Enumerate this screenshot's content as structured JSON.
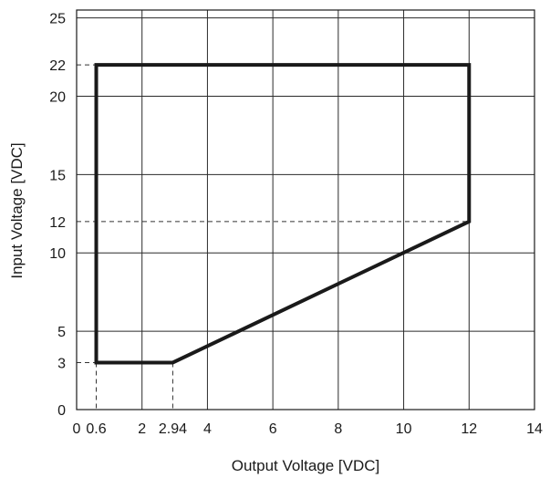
{
  "chart_data": {
    "type": "line",
    "title": "",
    "xlabel": "Output Voltage [VDC]",
    "ylabel": "Input Voltage [VDC]",
    "xlim": [
      0,
      14
    ],
    "ylim": [
      0,
      25.5
    ],
    "grid": true,
    "x_ticks": [
      {
        "value": 0,
        "label": "0"
      },
      {
        "value": 0.6,
        "label": "0.6"
      },
      {
        "value": 2,
        "label": "2"
      },
      {
        "value": 2.94,
        "label": "2.94"
      },
      {
        "value": 4,
        "label": "4"
      },
      {
        "value": 6,
        "label": "6"
      },
      {
        "value": 8,
        "label": "8"
      },
      {
        "value": 10,
        "label": "10"
      },
      {
        "value": 12,
        "label": "12"
      },
      {
        "value": 14,
        "label": "14"
      }
    ],
    "y_ticks": [
      {
        "value": 0,
        "label": "0"
      },
      {
        "value": 3,
        "label": "3"
      },
      {
        "value": 5,
        "label": "5"
      },
      {
        "value": 10,
        "label": "10"
      },
      {
        "value": 12,
        "label": "12"
      },
      {
        "value": 15,
        "label": "15"
      },
      {
        "value": 20,
        "label": "20"
      },
      {
        "value": 22,
        "label": "22"
      },
      {
        "value": 25,
        "label": "25"
      }
    ],
    "grid_x": [
      0,
      2,
      4,
      6,
      8,
      10,
      12,
      14
    ],
    "grid_y": [
      0,
      5,
      10,
      15,
      20,
      25
    ],
    "series": [
      {
        "x": [
          0.6,
          0.6,
          12,
          12,
          2.94,
          0.6
        ],
        "y": [
          3,
          22,
          22,
          12,
          3,
          3
        ],
        "color": "#1a1a1a"
      }
    ],
    "reference_lines": [
      {
        "from": [
          0,
          22
        ],
        "to": [
          0.6,
          22
        ]
      },
      {
        "from": [
          0,
          12
        ],
        "to": [
          12,
          12
        ]
      },
      {
        "from": [
          0,
          3
        ],
        "to": [
          0.6,
          3
        ]
      },
      {
        "from": [
          0.6,
          3
        ],
        "to": [
          0.6,
          0
        ]
      },
      {
        "from": [
          2.94,
          3
        ],
        "to": [
          2.94,
          0
        ]
      }
    ]
  }
}
